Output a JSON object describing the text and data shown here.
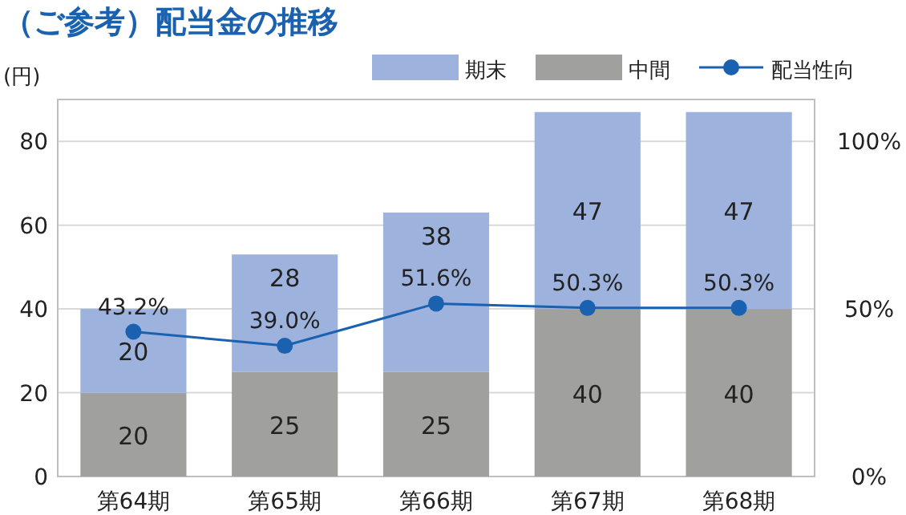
{
  "chart_data": {
    "type": "bar",
    "title": "（ご参考）配当金の推移",
    "ylabel": "(円)",
    "categories": [
      "第64期",
      "第65期",
      "第66期",
      "第67期",
      "第68期"
    ],
    "stacked": true,
    "data_labels": true,
    "grid": "y",
    "legend": "top right",
    "marker": "circle",
    "ylim": [
      0,
      90
    ],
    "yticks": [
      0,
      20,
      40,
      60,
      80
    ],
    "y2lim": [
      0,
      112.5
    ],
    "y2ticks": [
      {
        "value": 0,
        "label": "0%"
      },
      {
        "value": 50,
        "label": "50%"
      },
      {
        "value": 100,
        "label": "100%"
      }
    ],
    "series": [
      {
        "name": "中間",
        "color": "#a0a09f",
        "values": [
          20,
          25,
          25,
          40,
          40
        ]
      },
      {
        "name": "期末",
        "color": "#9db2dd",
        "values": [
          20,
          28,
          38,
          47,
          47
        ]
      },
      {
        "name": "配当性向",
        "type": "line",
        "axis": "y2",
        "color": "#1a62b0",
        "values": [
          43.2,
          39.0,
          51.6,
          50.3,
          50.3
        ],
        "value_labels": [
          "43.2%",
          "39.0%",
          "51.6%",
          "50.3%",
          "50.3%"
        ]
      }
    ]
  }
}
